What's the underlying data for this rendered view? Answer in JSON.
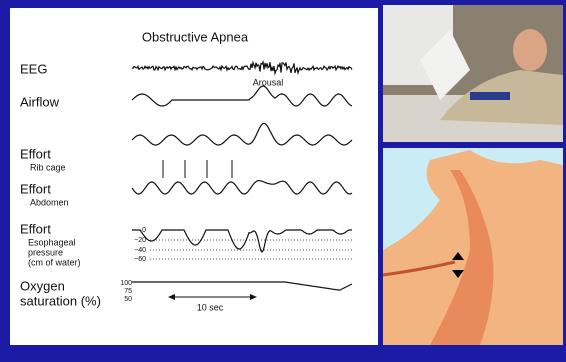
{
  "diagram": {
    "title": "Obstructive Apnea",
    "eeg_label": "EEG",
    "arousal_label": "Arousal",
    "airflow_label": "Airflow",
    "rib_effort_label": "Effort",
    "rib_cage_label": "Rib cage",
    "abdomen_effort_label": "Effort",
    "abdomen_label": "Abdomen",
    "esophageal_effort_label": "Effort",
    "esophageal_label": [
      "Esophageal",
      "pressure",
      "(cm of water)"
    ],
    "pressure_ticks": [
      "0",
      "−20",
      "−40",
      "−60"
    ],
    "oxygen_label": [
      "Oxygen",
      "saturation (%)"
    ],
    "saturation_ticks": [
      "100",
      "75",
      "50"
    ],
    "time_scale_label": "10 sec"
  }
}
